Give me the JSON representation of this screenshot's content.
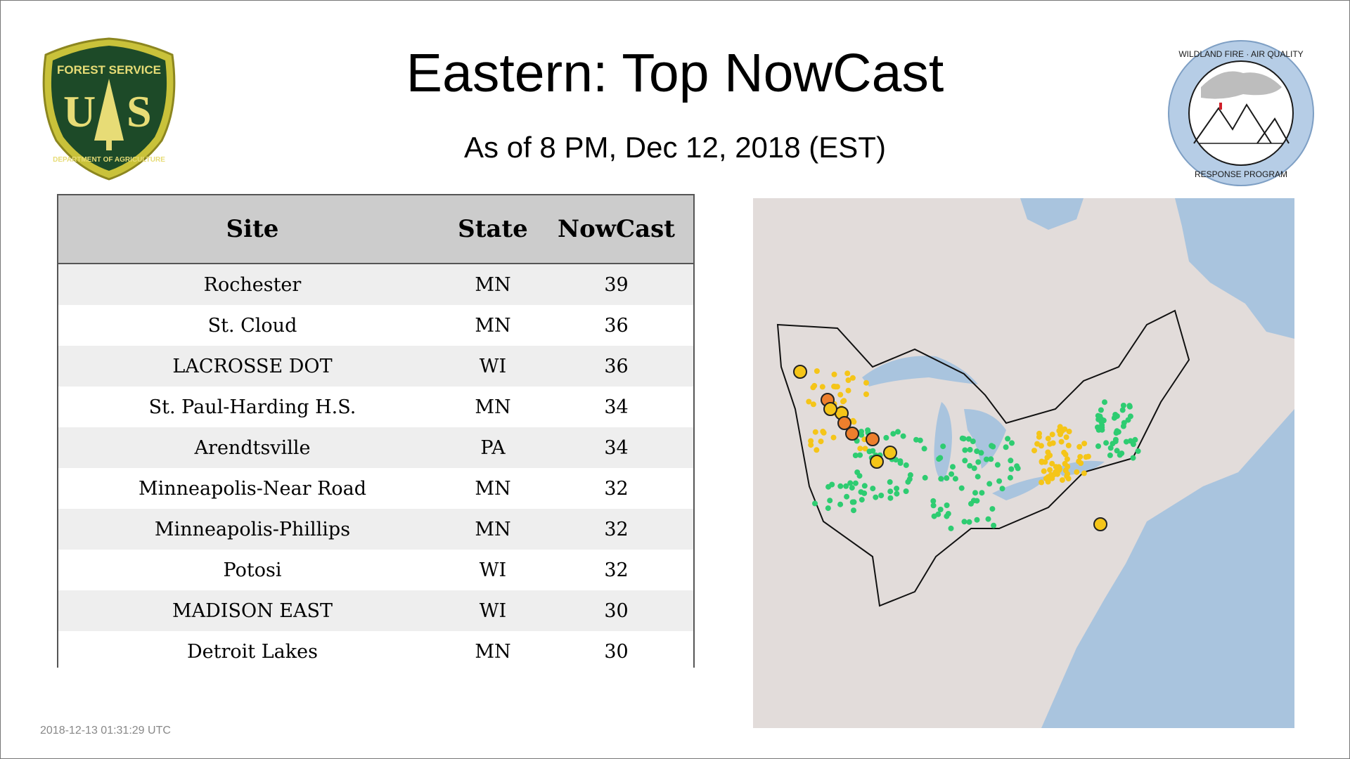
{
  "header": {
    "title": "Eastern: Top NowCast",
    "subtitle": "As of  8 PM, Dec 12, 2018 (EST)"
  },
  "logos": {
    "left": {
      "text_top": "FOREST SERVICE",
      "letters": "U S",
      "text_bottom": "DEPARTMENT OF AGRICULTURE"
    },
    "right": {
      "text_top": "WILDLAND FIRE · AIR QUALITY",
      "text_bottom": "RESPONSE PROGRAM"
    }
  },
  "table": {
    "headers": {
      "site": "Site",
      "state": "State",
      "nowcast": "NowCast"
    },
    "rows": [
      {
        "site": "Rochester",
        "state": "MN",
        "nowcast": "39"
      },
      {
        "site": "St. Cloud",
        "state": "MN",
        "nowcast": "36"
      },
      {
        "site": "LACROSSE DOT",
        "state": "WI",
        "nowcast": "36"
      },
      {
        "site": "St. Paul-Harding H.S.",
        "state": "MN",
        "nowcast": "34"
      },
      {
        "site": "Arendtsville",
        "state": "PA",
        "nowcast": "34"
      },
      {
        "site": "Minneapolis-Near Road",
        "state": "MN",
        "nowcast": "32"
      },
      {
        "site": "Minneapolis-Phillips",
        "state": "MN",
        "nowcast": "32"
      },
      {
        "site": "Potosi",
        "state": "WI",
        "nowcast": "32"
      },
      {
        "site": "MADISON EAST",
        "state": "WI",
        "nowcast": "30"
      },
      {
        "site": "Detroit Lakes",
        "state": "MN",
        "nowcast": "30"
      }
    ]
  },
  "map": {
    "colors": {
      "land": "#e2dcda",
      "water": "#a9c4de",
      "good": "#2ecc71",
      "moderate": "#f5c518",
      "usg": "#ee7f2d",
      "nodata": "#b0b0b0"
    },
    "highlighted_sites_marked": 10
  },
  "footer": {
    "timestamp": "2018-12-13 01:31:29 UTC"
  }
}
